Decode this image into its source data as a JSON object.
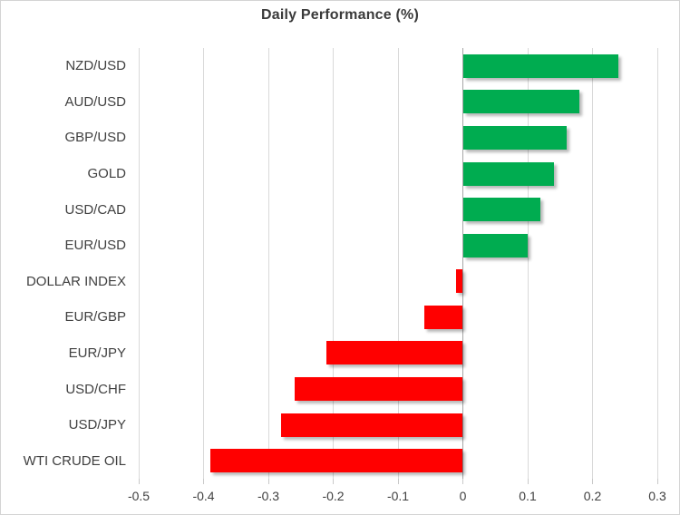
{
  "title": "Daily Performance (%)",
  "chart_data": {
    "type": "bar",
    "orientation": "horizontal",
    "title": "Daily Performance (%)",
    "categories": [
      "NZD/USD",
      "AUD/USD",
      "GBP/USD",
      "GOLD",
      "USD/CAD",
      "EUR/USD",
      "DOLLAR INDEX",
      "EUR/GBP",
      "EUR/JPY",
      "USD/CHF",
      "USD/JPY",
      "WTI CRUDE OIL"
    ],
    "values": [
      0.24,
      0.18,
      0.16,
      0.14,
      0.12,
      0.1,
      -0.01,
      -0.06,
      -0.21,
      -0.26,
      -0.28,
      -0.39
    ],
    "xlim": [
      -0.5,
      0.3
    ],
    "x_ticks": [
      -0.5,
      -0.4,
      -0.3,
      -0.2,
      -0.1,
      0,
      0.1,
      0.2,
      0.3
    ],
    "x_tick_labels": [
      "-0.5",
      "-0.4",
      "-0.3",
      "-0.2",
      "-0.1",
      "0",
      "0.1",
      "0.2",
      "0.3"
    ],
    "positive_color": "#00AC50",
    "negative_color": "#FF0000",
    "grid": true,
    "legend": "none"
  }
}
